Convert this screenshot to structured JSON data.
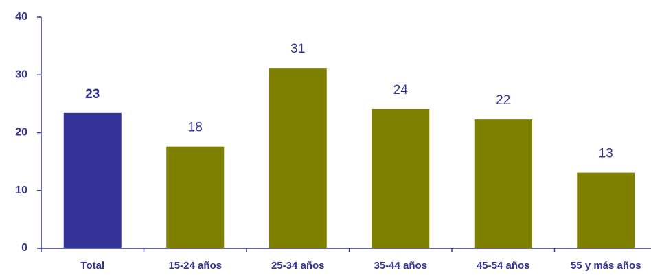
{
  "chart_data": {
    "type": "bar",
    "categories": [
      "Total",
      "15-24 años",
      "25-34 años",
      "35-44 años",
      "45-54 años",
      "55 y más años"
    ],
    "values": [
      23.4,
      17.6,
      31.2,
      24.1,
      22.3,
      13.1
    ],
    "value_labels": [
      "23",
      "18",
      "31",
      "24",
      "22",
      "13"
    ],
    "colors": [
      "#333399",
      "#808000",
      "#808000",
      "#808000",
      "#808000",
      "#808000"
    ],
    "ylim": [
      0,
      40
    ],
    "yticks": [
      0,
      10,
      20,
      30,
      40
    ],
    "grid": false
  }
}
